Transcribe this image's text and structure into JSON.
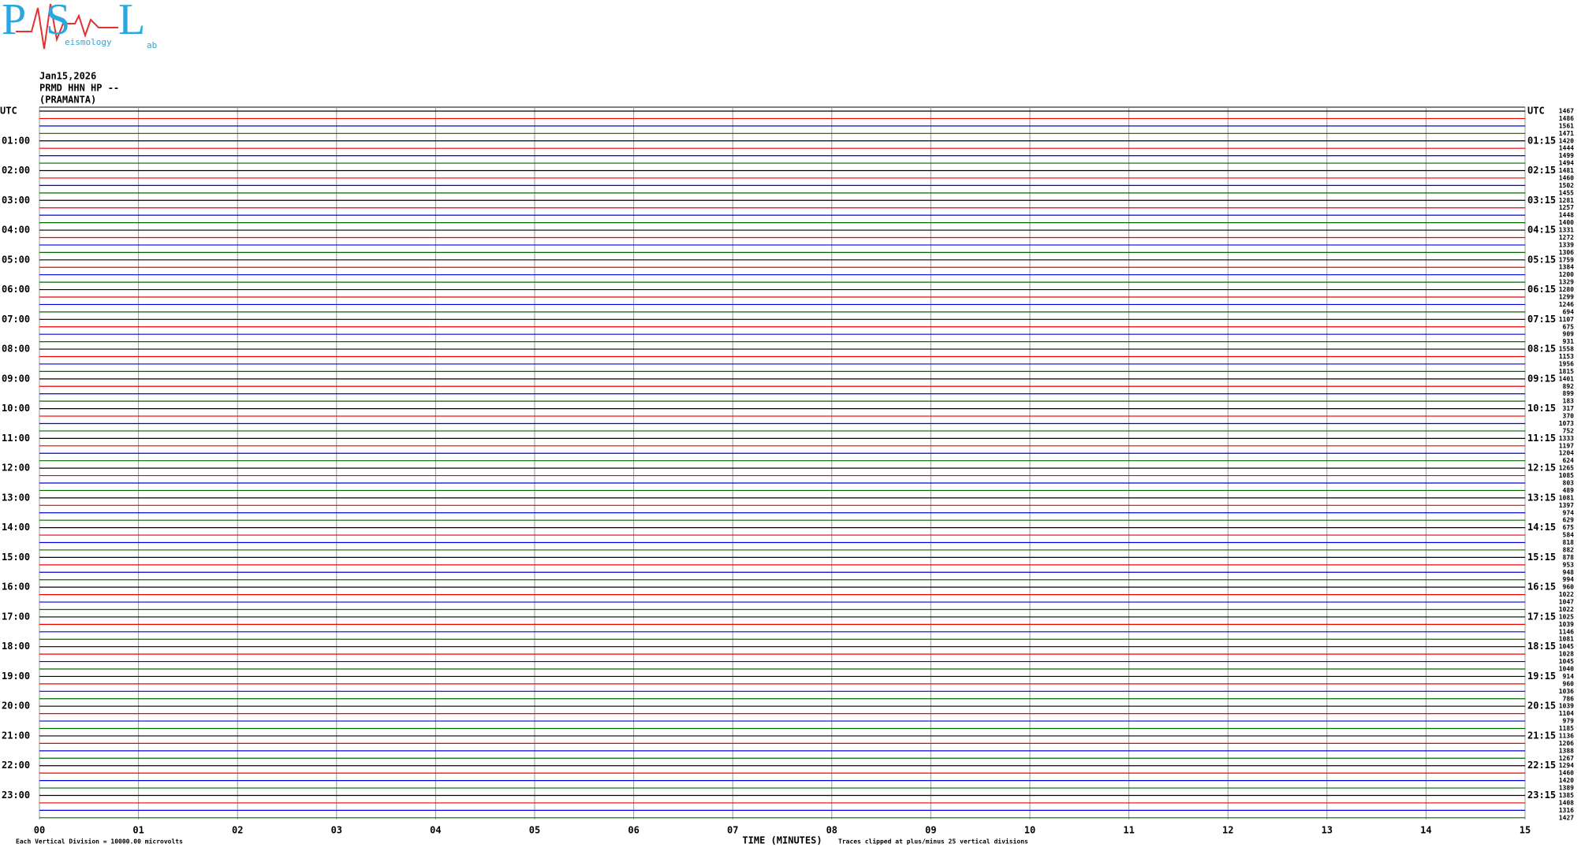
{
  "logo": {
    "letters": [
      "P",
      "S",
      "L"
    ],
    "small": [
      "eismology",
      "ab"
    ]
  },
  "header": {
    "date": "Jan15,2026",
    "station": "PRMD HHN HP --",
    "name": "(PRAMANTA)"
  },
  "left_labels": [
    "UTC",
    "01:00",
    "02:00",
    "03:00",
    "04:00",
    "05:00",
    "06:00",
    "07:00",
    "08:00",
    "09:00",
    "10:00",
    "11:00",
    "12:00",
    "13:00",
    "14:00",
    "15:00",
    "16:00",
    "17:00",
    "18:00",
    "19:00",
    "20:00",
    "21:00",
    "22:00",
    "23:00"
  ],
  "right_labels": [
    "UTC",
    "01:15",
    "02:15",
    "03:15",
    "04:15",
    "05:15",
    "06:15",
    "07:15",
    "08:15",
    "09:15",
    "10:15",
    "11:15",
    "12:15",
    "13:15",
    "14:15",
    "15:15",
    "16:15",
    "17:15",
    "18:15",
    "19:15",
    "20:15",
    "21:15",
    "22:15",
    "23:15"
  ],
  "trace_numbers": [
    1467,
    1486,
    1561,
    1471,
    1420,
    1444,
    1499,
    1494,
    1481,
    1460,
    1502,
    1455,
    1281,
    1257,
    1448,
    1400,
    1331,
    1272,
    1339,
    1306,
    1759,
    1384,
    1200,
    1329,
    1280,
    1299,
    1246,
    694,
    1107,
    675,
    909,
    931,
    1558,
    1153,
    1956,
    1815,
    1401,
    892,
    899,
    183,
    317,
    370,
    1073,
    752,
    1333,
    1197,
    1204,
    624,
    1265,
    1085,
    803,
    489,
    1081,
    1397,
    974,
    629,
    675,
    584,
    818,
    882,
    878,
    953,
    948,
    994,
    960,
    1022,
    1047,
    1022,
    1025,
    1039,
    1146,
    1081,
    1045,
    1028,
    1045,
    1040,
    914,
    960,
    1036,
    786,
    1039,
    1104,
    979,
    1185,
    1136,
    1206,
    1388,
    1267,
    1294,
    1460,
    1420,
    1389,
    1385,
    1408,
    1316,
    1427
  ],
  "x_ticks": [
    "00",
    "01",
    "02",
    "03",
    "04",
    "05",
    "06",
    "07",
    "08",
    "09",
    "10",
    "11",
    "12",
    "13",
    "14",
    "15"
  ],
  "x_label": "TIME (MINUTES)",
  "footer_left": "Each Vertical Division = 10000.00 microvolts",
  "footer_right": "Traces clipped at plus/minus 25 vertical divisions"
}
